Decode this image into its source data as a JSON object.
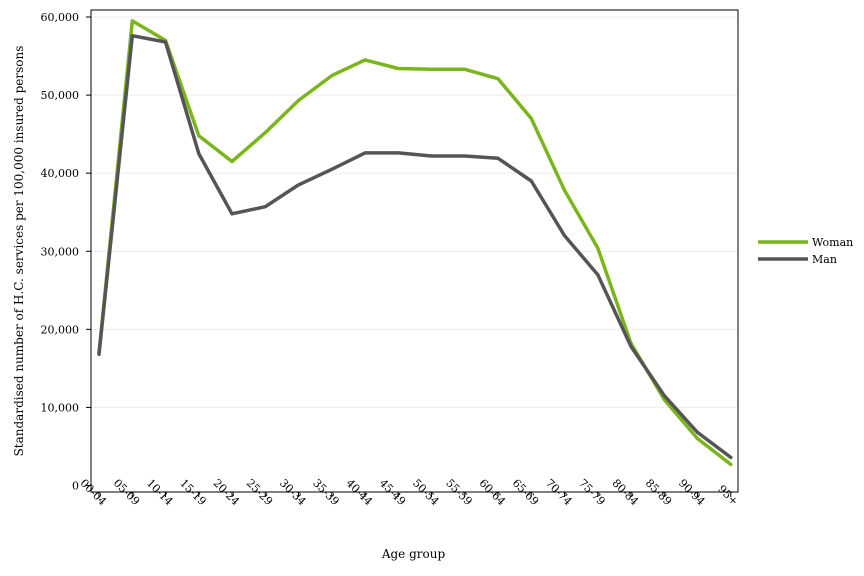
{
  "chart_data": {
    "type": "line",
    "title": "",
    "xlabel": "Age group",
    "ylabel": "Standardised number of H.C. services per 100,000 insured persons",
    "categories": [
      "00-04",
      "05-09",
      "10-14",
      "15-19",
      "20-24",
      "25-29",
      "30-34",
      "35-39",
      "40-44",
      "45-49",
      "50-54",
      "55-59",
      "60-64",
      "65-69",
      "70-74",
      "75-79",
      "80-84",
      "85-89",
      "90-94",
      "95+"
    ],
    "ylim": [
      0,
      60000
    ],
    "yticks": [
      0,
      10000,
      20000,
      30000,
      40000,
      50000,
      60000
    ],
    "ytick_labels": [
      "0",
      "10,000",
      "20,000",
      "30,000",
      "40,000",
      "50,000",
      "60,000"
    ],
    "grid": "horizontal",
    "legend_position": "right",
    "series": [
      {
        "name": "Woman",
        "color": "#7ab51d",
        "values": [
          17000,
          59500,
          57000,
          44800,
          41500,
          45200,
          49300,
          52500,
          54500,
          53400,
          53300,
          53300,
          52100,
          47000,
          37800,
          30400,
          18200,
          11000,
          6000,
          2700
        ]
      },
      {
        "name": "Man",
        "color": "#555555",
        "values": [
          16800,
          57600,
          56800,
          42500,
          34800,
          35700,
          38500,
          40500,
          42600,
          42600,
          42200,
          42200,
          41900,
          39000,
          32000,
          27000,
          17800,
          11500,
          6800,
          3600
        ]
      }
    ]
  }
}
